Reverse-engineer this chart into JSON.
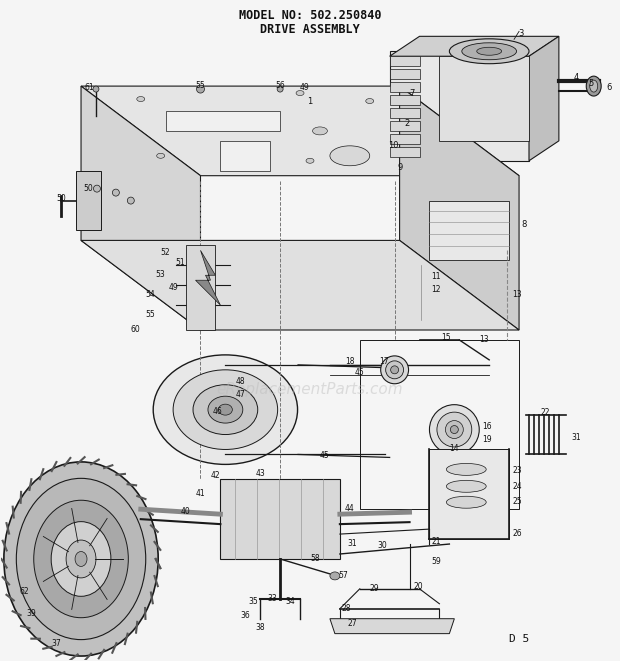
{
  "title_line1": "MODEL NO: 502.250840",
  "title_line2": "DRIVE ASSEMBLY",
  "background_color": "#f5f5f5",
  "border_color": "#000000",
  "text_color": "#111111",
  "watermark_text": "eReplacementParts.com",
  "watermark_color": "#bbbbbb",
  "watermark_alpha": 0.45,
  "footer_text": "D 5",
  "fig_width": 6.2,
  "fig_height": 6.61,
  "dpi": 100,
  "title_fontsize": 9
}
